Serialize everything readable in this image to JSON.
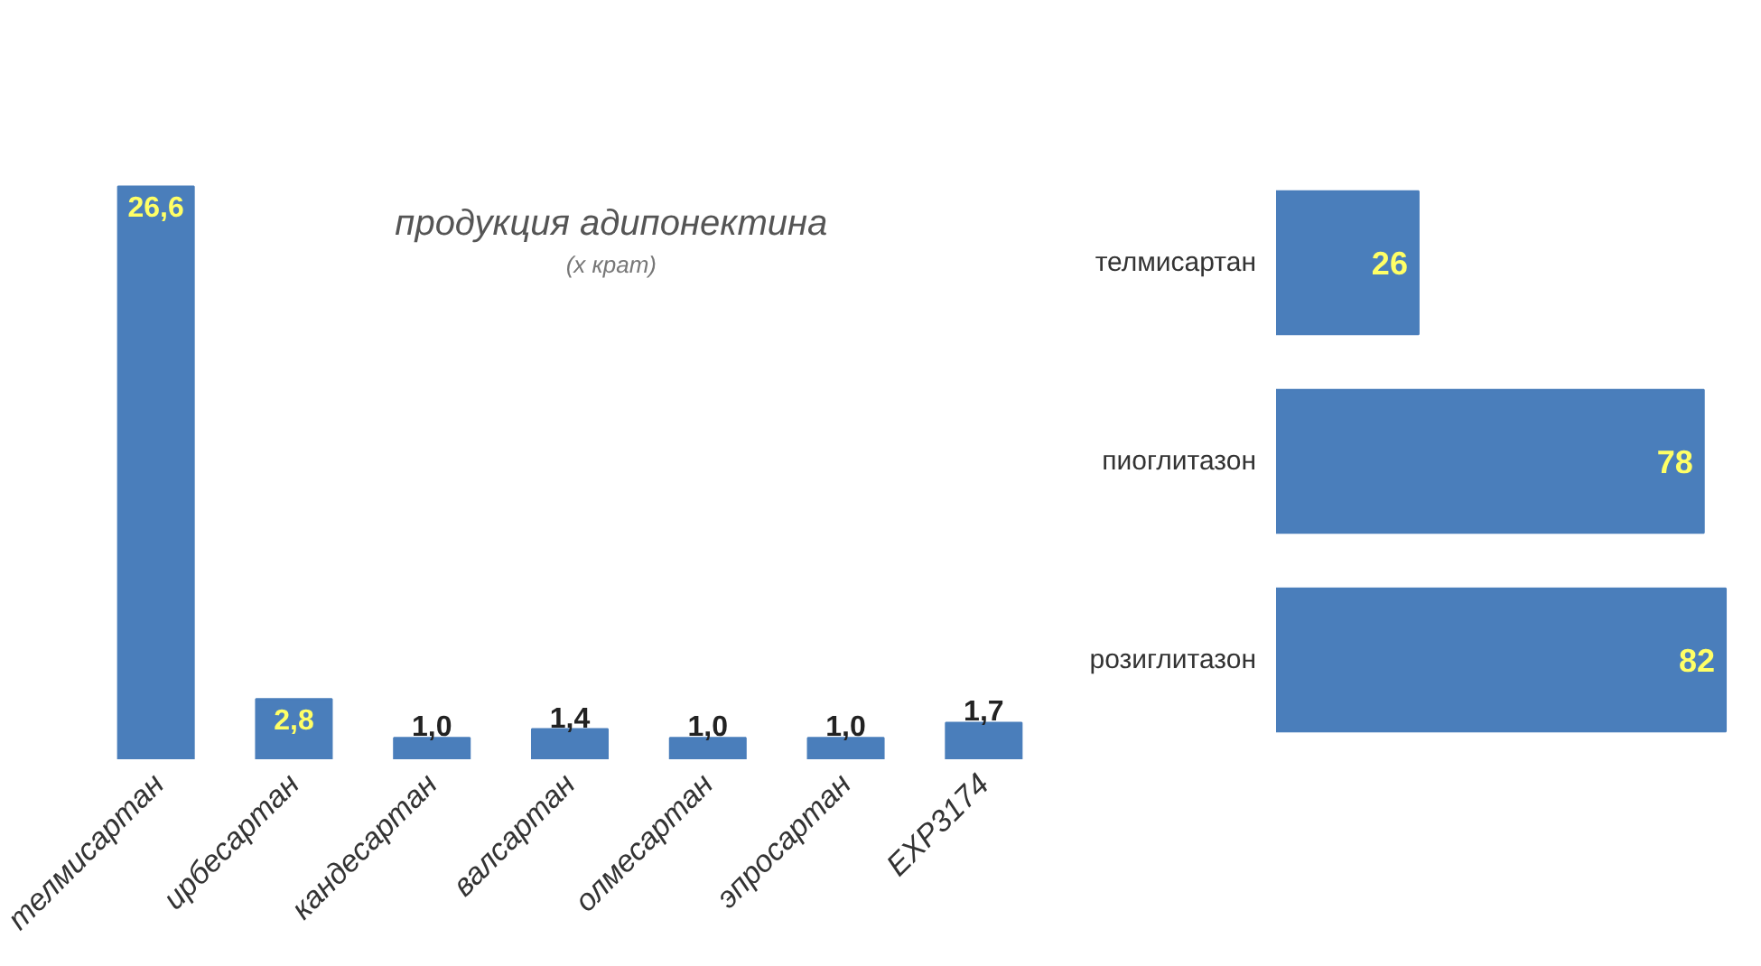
{
  "chart_data": [
    {
      "type": "bar",
      "title": "продукция адипонектина",
      "subtitle": "(х крат)",
      "categories": [
        "телмисартан",
        "ирбесартан",
        "кандесартан",
        "валсартан",
        "олмесартан",
        "эпросартан",
        "EXP3174"
      ],
      "values": [
        26.6,
        2.8,
        1.0,
        1.4,
        1.0,
        1.0,
        1.7
      ],
      "value_labels": [
        "26,6",
        "2,8",
        "1,0",
        "1,4",
        "1,0",
        "1,0",
        "1,7"
      ],
      "color": "#4a7ebb"
    },
    {
      "type": "bar",
      "orientation": "horizontal",
      "categories": [
        "телмисартан",
        "пиоглитазон",
        "розиглитазон"
      ],
      "values": [
        26,
        78,
        82
      ],
      "data_labels": true,
      "color": "#4a7ebb"
    }
  ]
}
